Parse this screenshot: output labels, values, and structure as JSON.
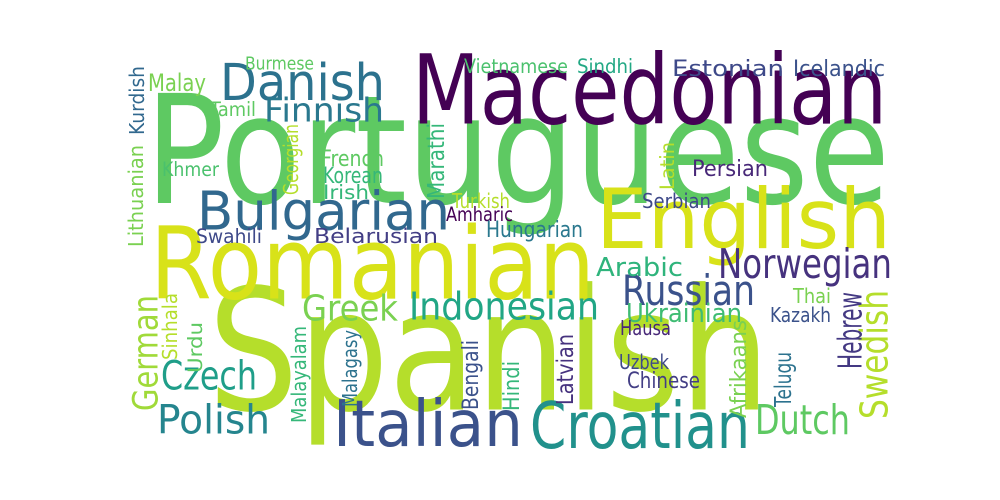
{
  "word_cloud": {
    "words": [
      {
        "text": "Portuguese",
        "color": "#5ec962"
      },
      {
        "text": "Spanish",
        "color": "#b5de2b"
      },
      {
        "text": "Macedonian",
        "color": "#440154"
      },
      {
        "text": "Romanian",
        "color": "#d8e219"
      },
      {
        "text": "English",
        "color": "#d8e219"
      },
      {
        "text": "Italian",
        "color": "#3b528b"
      },
      {
        "text": "Croatian",
        "color": "#21918c"
      },
      {
        "text": "Danish",
        "color": "#2c728e"
      },
      {
        "text": "Bulgarian",
        "color": "#31688e"
      },
      {
        "text": "Norwegian",
        "color": "#46327e"
      },
      {
        "text": "Indonesian",
        "color": "#21a685"
      },
      {
        "text": "Russian",
        "color": "#3b528b"
      },
      {
        "text": "Dutch",
        "color": "#5ec962"
      },
      {
        "text": "Greek",
        "color": "#7ad151"
      },
      {
        "text": "Czech",
        "color": "#1f9e89"
      },
      {
        "text": "Polish",
        "color": "#25858e"
      },
      {
        "text": "German",
        "color": "#a0da39"
      },
      {
        "text": "Swedish",
        "color": "#b5de2b"
      },
      {
        "text": "Finnish",
        "color": "#2a788e"
      },
      {
        "text": "Ukrainian",
        "color": "#3fbc73"
      },
      {
        "text": "Hebrew",
        "color": "#443983"
      },
      {
        "text": "Arabic",
        "color": "#2fb47c"
      },
      {
        "text": "Malay",
        "color": "#7ad151"
      },
      {
        "text": "Vietnamese",
        "color": "#4ac16d"
      },
      {
        "text": "Sindhi",
        "color": "#22a884"
      },
      {
        "text": "Estonian",
        "color": "#3e4989"
      },
      {
        "text": "Icelandic",
        "color": "#3b528b"
      },
      {
        "text": "Burmese",
        "color": "#5ec962"
      },
      {
        "text": "Kurdish",
        "color": "#31688e"
      },
      {
        "text": "Tamil",
        "color": "#5ec962"
      },
      {
        "text": "French",
        "color": "#5ec962"
      },
      {
        "text": "Korean",
        "color": "#35b779"
      },
      {
        "text": "Irish",
        "color": "#35b779"
      },
      {
        "text": "Khmer",
        "color": "#4ac16d"
      },
      {
        "text": "Georgian",
        "color": "#b5de2b"
      },
      {
        "text": "Marathi",
        "color": "#35b779"
      },
      {
        "text": "Latin",
        "color": "#b5de2b"
      },
      {
        "text": "Persian",
        "color": "#482878"
      },
      {
        "text": "Turkish",
        "color": "#b5de2b"
      },
      {
        "text": "Amharic",
        "color": "#440154"
      },
      {
        "text": "Serbian",
        "color": "#3e4989"
      },
      {
        "text": "Swahili",
        "color": "#3e4989"
      },
      {
        "text": "Belarusian",
        "color": "#433e85"
      },
      {
        "text": "Hungarian",
        "color": "#2a788e"
      },
      {
        "text": "Lithuanian",
        "color": "#7ad151"
      },
      {
        "text": "Thai",
        "color": "#7ad151"
      },
      {
        "text": "Kazakh",
        "color": "#3b528b"
      },
      {
        "text": "Hausa",
        "color": "#482878"
      },
      {
        "text": "Sinhala",
        "color": "#b5de2b"
      },
      {
        "text": "Urdu",
        "color": "#5ec962"
      },
      {
        "text": "Malayalam",
        "color": "#35b779"
      },
      {
        "text": "Malagasy",
        "color": "#2c728e"
      },
      {
        "text": "Bengali",
        "color": "#3b528b"
      },
      {
        "text": "Hindi",
        "color": "#35b779"
      },
      {
        "text": "Latvian",
        "color": "#46327e"
      },
      {
        "text": "Uzbek",
        "color": "#3e4989"
      },
      {
        "text": "Chinese",
        "color": "#433e85"
      },
      {
        "text": "Afrikaans",
        "color": "#7ad151"
      },
      {
        "text": "Telugu",
        "color": "#2c728e"
      }
    ]
  }
}
